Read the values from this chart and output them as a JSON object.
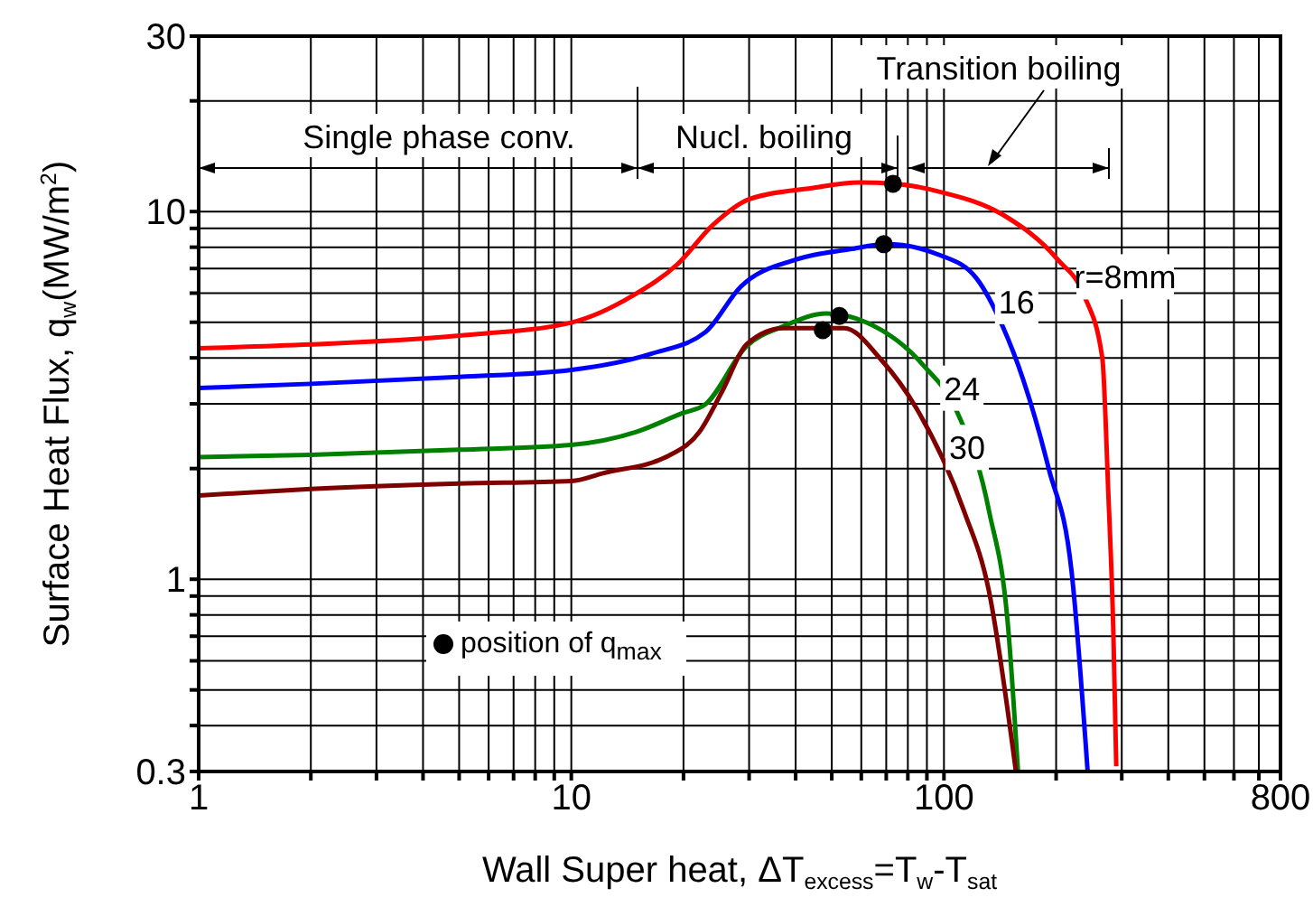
{
  "chart_data": {
    "type": "line",
    "xlabel": "Wall Super heat, ΔT$_{excess}$=T$_{w}$-T$_{sat}$",
    "ylabel": "Surface Heat Flux, q$_{w}$(MW/m$^{2}$)",
    "log": "xy",
    "grid": true,
    "legend": "bottom left",
    "line_style": "solid",
    "xlim": [
      1,
      800
    ],
    "ylim": [
      0.3,
      30
    ],
    "xticks": [
      1,
      {
        "value": 2,
        "label": null
      },
      {
        "value": 3,
        "label": null
      },
      {
        "value": 4,
        "label": null
      },
      {
        "value": 5,
        "label": null
      },
      {
        "value": 6,
        "label": null
      },
      {
        "value": 7,
        "label": null
      },
      {
        "value": 8,
        "label": null
      },
      {
        "value": 9,
        "label": null
      },
      10,
      {
        "value": 20,
        "label": null
      },
      {
        "value": 30,
        "label": null
      },
      {
        "value": 40,
        "label": null
      },
      {
        "value": 50,
        "label": null
      },
      {
        "value": 60,
        "label": null
      },
      {
        "value": 70,
        "label": null
      },
      {
        "value": 80,
        "label": null
      },
      {
        "value": 90,
        "label": null
      },
      100,
      {
        "value": 200,
        "label": null
      },
      {
        "value": 300,
        "label": null
      },
      {
        "value": 400,
        "label": null
      },
      {
        "value": 500,
        "label": null
      },
      {
        "value": 600,
        "label": null
      },
      {
        "value": 700,
        "label": null
      },
      800
    ],
    "yticks": [
      0.3,
      {
        "value": 0.4,
        "label": null
      },
      {
        "value": 0.5,
        "label": null
      },
      {
        "value": 0.6,
        "label": null
      },
      {
        "value": 0.7,
        "label": null
      },
      {
        "value": 0.8,
        "label": null
      },
      {
        "value": 0.9,
        "label": null
      },
      1,
      {
        "value": 2,
        "label": null
      },
      {
        "value": 3,
        "label": null
      },
      {
        "value": 4,
        "label": null
      },
      {
        "value": 5,
        "label": null
      },
      {
        "value": 6,
        "label": null
      },
      {
        "value": 7,
        "label": null
      },
      {
        "value": 8,
        "label": null
      },
      {
        "value": 9,
        "label": null
      },
      10,
      {
        "value": 20,
        "label": null
      },
      30
    ],
    "annotations": [
      "Single phase conv.",
      "Nucl. boiling",
      "Transition boiling"
    ],
    "series": [
      {
        "name": "r=8mm",
        "color": "#ff0000",
        "x": [
          1,
          2,
          5,
          10,
          14.6,
          19.3,
          24,
          30,
          44.6,
          59,
          74,
          98,
          144,
          202,
          238,
          266,
          276,
          285,
          290
        ],
        "values": [
          4.25,
          4.35,
          4.6,
          4.99,
          5.9,
          7.2,
          9.2,
          10.8,
          11.6,
          12.0,
          11.9,
          11.3,
          9.8,
          7.4,
          5.9,
          4.0,
          1.73,
          0.7,
          0.31
        ]
      },
      {
        "name": "16",
        "color": "#0000ff",
        "x": [
          1,
          2,
          5,
          10,
          16.3,
          22.9,
          28.5,
          40,
          56,
          70,
          98,
          122,
          144,
          163,
          191,
          220,
          243
        ],
        "values": [
          3.31,
          3.4,
          3.55,
          3.71,
          4.1,
          4.7,
          6.25,
          7.4,
          7.9,
          8.15,
          7.6,
          6.6,
          4.85,
          3.5,
          2.0,
          1.05,
          0.3
        ]
      },
      {
        "name": "24",
        "color": "#008000",
        "x": [
          1,
          2,
          5,
          10,
          15,
          19.7,
          22.9,
          29.5,
          37,
          48.4,
          62,
          87.6,
          109,
          132,
          149,
          158
        ],
        "values": [
          2.15,
          2.18,
          2.25,
          2.32,
          2.52,
          2.82,
          2.99,
          4.3,
          4.87,
          5.28,
          4.99,
          3.84,
          2.82,
          1.54,
          0.72,
          0.3
        ]
      },
      {
        "name": "30",
        "color": "#800000",
        "x": [
          1,
          2,
          5,
          10,
          12.1,
          18.3,
          22.1,
          25.5,
          29.5,
          37,
          54,
          67.6,
          84.3,
          113,
          132,
          156
        ],
        "values": [
          1.69,
          1.76,
          1.82,
          1.85,
          1.94,
          2.17,
          2.52,
          3.27,
          4.35,
          4.82,
          4.82,
          3.97,
          2.92,
          1.54,
          0.93,
          0.3
        ]
      },
      {
        "name": "position of q$_{max}$",
        "type": "scatter",
        "marker": "circle",
        "color": "#000000",
        "x": [
          73,
          69,
          52.4,
          47.3
        ],
        "values": [
          11.9,
          8.15,
          5.2,
          4.76
        ]
      }
    ]
  }
}
